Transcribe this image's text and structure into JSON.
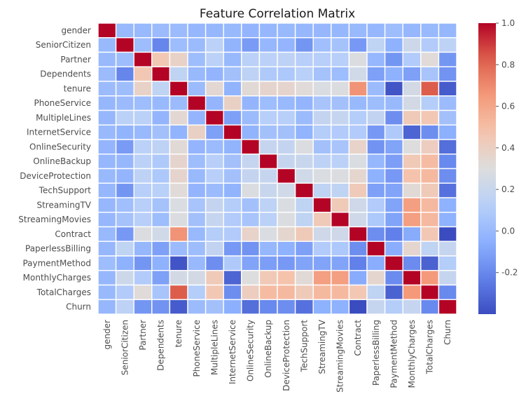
{
  "chart_data": {
    "type": "heatmap",
    "title": "Feature Correlation Matrix",
    "xlabel": "",
    "ylabel": "",
    "labels": [
      "gender",
      "SeniorCitizen",
      "Partner",
      "Dependents",
      "tenure",
      "PhoneService",
      "MultipleLines",
      "InternetService",
      "OnlineSecurity",
      "OnlineBackup",
      "DeviceProtection",
      "TechSupport",
      "StreamingTV",
      "StreamingMovies",
      "Contract",
      "PaperlessBilling",
      "PaymentMethod",
      "MonthlyCharges",
      "TotalCharges",
      "Churn"
    ],
    "colorscale": "coolwarm",
    "vmin": -0.4,
    "vmax": 1.0,
    "colorbar_ticks": [
      "1.0",
      "0.8",
      "0.6",
      "0.4",
      "0.2",
      "0.0",
      "-0.2"
    ],
    "colorbar_tick_values": [
      1.0,
      0.8,
      0.6,
      0.4,
      0.2,
      0.0,
      -0.2
    ],
    "grid": false,
    "matrix": [
      [
        1.0,
        0.0,
        0.0,
        0.01,
        0.01,
        -0.01,
        -0.01,
        0.0,
        -0.02,
        -0.01,
        0.0,
        -0.01,
        -0.01,
        -0.01,
        0.0,
        -0.01,
        0.02,
        -0.01,
        0.0,
        -0.01
      ],
      [
        0.0,
        1.0,
        0.02,
        -0.21,
        0.02,
        0.01,
        0.14,
        -0.03,
        -0.13,
        -0.01,
        -0.02,
        -0.15,
        0.03,
        0.05,
        -0.14,
        0.16,
        -0.04,
        0.22,
        0.1,
        0.15
      ],
      [
        0.0,
        0.02,
        1.0,
        0.45,
        0.38,
        0.02,
        0.14,
        0.0,
        0.14,
        0.14,
        0.15,
        0.12,
        0.12,
        0.12,
        0.29,
        -0.01,
        -0.15,
        0.1,
        0.32,
        -0.15
      ],
      [
        0.01,
        -0.21,
        0.45,
        1.0,
        0.16,
        0.0,
        -0.02,
        0.04,
        0.15,
        0.09,
        0.08,
        0.13,
        0.05,
        0.02,
        0.24,
        -0.11,
        -0.04,
        -0.11,
        0.06,
        -0.16
      ],
      [
        0.01,
        0.02,
        0.38,
        0.16,
        1.0,
        0.01,
        0.34,
        -0.03,
        0.33,
        0.36,
        0.36,
        0.32,
        0.28,
        0.29,
        0.67,
        0.01,
        -0.37,
        0.25,
        0.83,
        -0.35
      ],
      [
        -0.01,
        0.01,
        0.02,
        0.0,
        0.01,
        1.0,
        -0.02,
        0.39,
        -0.02,
        0.02,
        0.0,
        -0.02,
        0.06,
        0.04,
        0.0,
        0.02,
        -0.0,
        0.25,
        0.11,
        0.01
      ],
      [
        -0.01,
        0.14,
        0.14,
        -0.02,
        0.34,
        -0.02,
        1.0,
        -0.11,
        0.01,
        0.12,
        0.12,
        0.01,
        0.18,
        0.19,
        0.11,
        0.17,
        -0.18,
        0.43,
        0.45,
        0.04
      ],
      [
        0.0,
        -0.03,
        0.0,
        0.04,
        -0.03,
        0.39,
        -0.11,
        1.0,
        -0.03,
        0.04,
        0.04,
        -0.03,
        0.11,
        0.1,
        0.1,
        -0.14,
        0.09,
        -0.32,
        -0.18,
        -0.05
      ],
      [
        -0.02,
        -0.13,
        0.14,
        0.15,
        0.33,
        -0.02,
        0.01,
        -0.03,
        1.0,
        0.19,
        0.18,
        0.29,
        0.04,
        0.06,
        0.37,
        -0.16,
        -0.1,
        0.3,
        0.41,
        -0.29
      ],
      [
        -0.01,
        -0.01,
        0.14,
        0.09,
        0.36,
        0.02,
        0.12,
        0.04,
        0.19,
        1.0,
        0.19,
        0.2,
        0.15,
        0.14,
        0.28,
        -0.01,
        -0.12,
        0.44,
        0.51,
        -0.2
      ],
      [
        0.0,
        -0.02,
        0.15,
        0.08,
        0.36,
        0.0,
        0.12,
        0.04,
        0.18,
        0.19,
        1.0,
        0.24,
        0.28,
        0.29,
        0.35,
        -0.04,
        -0.14,
        0.48,
        0.52,
        -0.18
      ],
      [
        -0.01,
        -0.15,
        0.12,
        0.13,
        0.32,
        -0.02,
        0.01,
        -0.03,
        0.29,
        0.2,
        0.24,
        1.0,
        0.16,
        0.16,
        0.43,
        -0.11,
        -0.1,
        0.33,
        0.43,
        -0.28
      ],
      [
        -0.01,
        0.03,
        0.12,
        0.05,
        0.28,
        0.06,
        0.18,
        0.11,
        0.04,
        0.15,
        0.28,
        0.16,
        1.0,
        0.43,
        0.23,
        0.1,
        -0.1,
        0.63,
        0.52,
        -0.04
      ],
      [
        -0.01,
        0.05,
        0.12,
        0.02,
        0.29,
        0.04,
        0.19,
        0.1,
        0.06,
        0.14,
        0.29,
        0.16,
        0.43,
        1.0,
        0.23,
        0.08,
        -0.1,
        0.63,
        0.52,
        -0.04
      ],
      [
        0.0,
        -0.14,
        0.29,
        0.24,
        0.67,
        0.0,
        0.11,
        0.1,
        0.37,
        0.28,
        0.35,
        0.43,
        0.23,
        0.23,
        1.0,
        -0.18,
        -0.23,
        -0.07,
        0.45,
        -0.4
      ],
      [
        -0.01,
        0.16,
        -0.01,
        -0.11,
        0.01,
        0.02,
        0.17,
        -0.14,
        -0.16,
        -0.01,
        -0.04,
        -0.11,
        0.1,
        0.08,
        -0.18,
        1.0,
        -0.06,
        0.35,
        0.16,
        0.19
      ],
      [
        0.02,
        -0.04,
        -0.15,
        -0.04,
        -0.37,
        -0.0,
        -0.18,
        0.09,
        -0.1,
        -0.12,
        -0.14,
        -0.1,
        -0.1,
        -0.1,
        -0.23,
        -0.06,
        1.0,
        -0.19,
        -0.33,
        0.11
      ],
      [
        -0.01,
        0.22,
        0.1,
        -0.11,
        0.25,
        0.25,
        0.43,
        -0.32,
        0.3,
        0.44,
        0.48,
        0.33,
        0.63,
        0.63,
        -0.07,
        0.35,
        -0.19,
        1.0,
        0.65,
        0.19
      ],
      [
        0.0,
        0.1,
        0.32,
        0.06,
        0.83,
        0.11,
        0.45,
        -0.18,
        0.41,
        0.51,
        0.52,
        0.43,
        0.52,
        0.52,
        0.45,
        0.16,
        -0.33,
        0.65,
        1.0,
        -0.2
      ],
      [
        -0.01,
        0.15,
        -0.15,
        -0.16,
        -0.35,
        0.01,
        0.04,
        -0.05,
        -0.29,
        -0.2,
        -0.18,
        -0.28,
        -0.04,
        -0.04,
        -0.4,
        0.19,
        0.11,
        0.19,
        -0.2,
        1.0
      ]
    ]
  }
}
